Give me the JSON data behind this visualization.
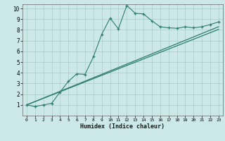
{
  "xlabel": "Humidex (Indice chaleur)",
  "bg_color": "#cce8e8",
  "grid_color": "#aacccc",
  "line_color": "#2e7d6e",
  "xlim": [
    -0.5,
    23.5
  ],
  "ylim": [
    0,
    10.4
  ],
  "xticks": [
    0,
    1,
    2,
    3,
    4,
    5,
    6,
    7,
    8,
    9,
    10,
    11,
    12,
    13,
    14,
    15,
    16,
    17,
    18,
    19,
    20,
    21,
    22,
    23
  ],
  "yticks": [
    1,
    2,
    3,
    4,
    5,
    6,
    7,
    8,
    9,
    10
  ],
  "main_x": [
    0,
    1,
    2,
    3,
    4,
    5,
    6,
    7,
    8,
    9,
    10,
    11,
    12,
    13,
    14,
    15,
    16,
    17,
    18,
    19,
    20,
    21,
    22,
    23
  ],
  "main_y": [
    1.0,
    0.85,
    1.0,
    1.15,
    2.2,
    3.2,
    3.9,
    3.85,
    5.5,
    7.6,
    9.1,
    8.1,
    10.3,
    9.55,
    9.5,
    8.85,
    8.3,
    8.2,
    8.15,
    8.3,
    8.2,
    8.3,
    8.5,
    8.75
  ],
  "line1_x": [
    0,
    23
  ],
  "line1_y": [
    1.0,
    8.3
  ],
  "line2_x": [
    0,
    23
  ],
  "line2_y": [
    1.0,
    8.05
  ]
}
